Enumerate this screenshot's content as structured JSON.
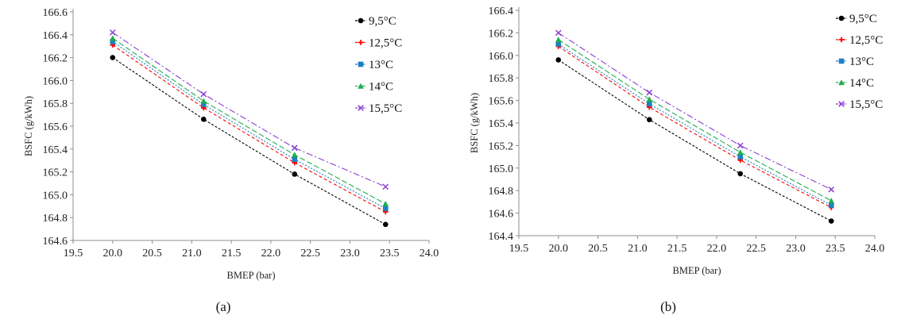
{
  "chart_data": [
    {
      "type": "line",
      "caption": "(a)",
      "xlabel": "BMEP (bar)",
      "ylabel": "BSFC  (g/kWh)",
      "xlim": [
        19.5,
        24.0
      ],
      "ylim": [
        164.6,
        166.6
      ],
      "x_ticks": [
        "19.5",
        "20.0",
        "20.5",
        "21.0",
        "21.5",
        "22.0",
        "22.5",
        "23.0",
        "23.5",
        "24.0"
      ],
      "y_ticks": [
        "164.6",
        "164.8",
        "165.0",
        "165.2",
        "165.4",
        "165.6",
        "165.8",
        "166.0",
        "166.2",
        "166.4",
        "166.6"
      ],
      "legend_position": "top-right",
      "grid": false,
      "x": [
        20.0,
        21.15,
        22.3,
        23.45
      ],
      "series": [
        {
          "name": "9,5°C",
          "color": "#000000",
          "marker": "circle",
          "values": [
            166.2,
            165.66,
            165.18,
            164.74
          ]
        },
        {
          "name": "12,5°C",
          "color": "#ff0000",
          "marker": "cross",
          "values": [
            166.31,
            165.76,
            165.28,
            164.85
          ]
        },
        {
          "name": "13°C",
          "color": "#1f7fbf",
          "marker": "square",
          "values": [
            166.34,
            165.79,
            165.31,
            164.88
          ]
        },
        {
          "name": "14°C",
          "color": "#1fae4f",
          "marker": "triangle",
          "values": [
            166.37,
            165.82,
            165.35,
            164.92
          ]
        },
        {
          "name": "15,5°C",
          "color": "#8a3fd1",
          "marker": "x",
          "values": [
            166.42,
            165.88,
            165.41,
            165.07
          ]
        }
      ]
    },
    {
      "type": "line",
      "caption": "(b)",
      "xlabel": "BMEP (bar)",
      "ylabel": "BSFC  (g/kWh)",
      "xlim": [
        19.5,
        24.0
      ],
      "ylim": [
        164.4,
        166.4
      ],
      "x_ticks": [
        "19.5",
        "20.0",
        "20.5",
        "21.0",
        "21.5",
        "22.0",
        "22.5",
        "23.0",
        "23.5",
        "24.0"
      ],
      "y_ticks": [
        "164.4",
        "164.6",
        "164.8",
        "165.0",
        "165.2",
        "165.4",
        "165.6",
        "165.8",
        "166.0",
        "166.2",
        "166.4"
      ],
      "legend_position": "top-right",
      "grid": false,
      "x": [
        20.0,
        21.15,
        22.3,
        23.45
      ],
      "series": [
        {
          "name": "9,5°C",
          "color": "#000000",
          "marker": "circle",
          "values": [
            165.96,
            165.43,
            164.95,
            164.53
          ]
        },
        {
          "name": "12,5°C",
          "color": "#ff0000",
          "marker": "cross",
          "values": [
            166.08,
            165.54,
            165.07,
            164.65
          ]
        },
        {
          "name": "13°C",
          "color": "#1f7fbf",
          "marker": "square",
          "values": [
            166.1,
            165.57,
            165.1,
            164.67
          ]
        },
        {
          "name": "14°C",
          "color": "#1fae4f",
          "marker": "triangle",
          "values": [
            166.14,
            165.61,
            165.14,
            164.71
          ]
        },
        {
          "name": "15,5°C",
          "color": "#8a3fd1",
          "marker": "x",
          "values": [
            166.2,
            165.67,
            165.2,
            164.81
          ]
        }
      ]
    }
  ]
}
